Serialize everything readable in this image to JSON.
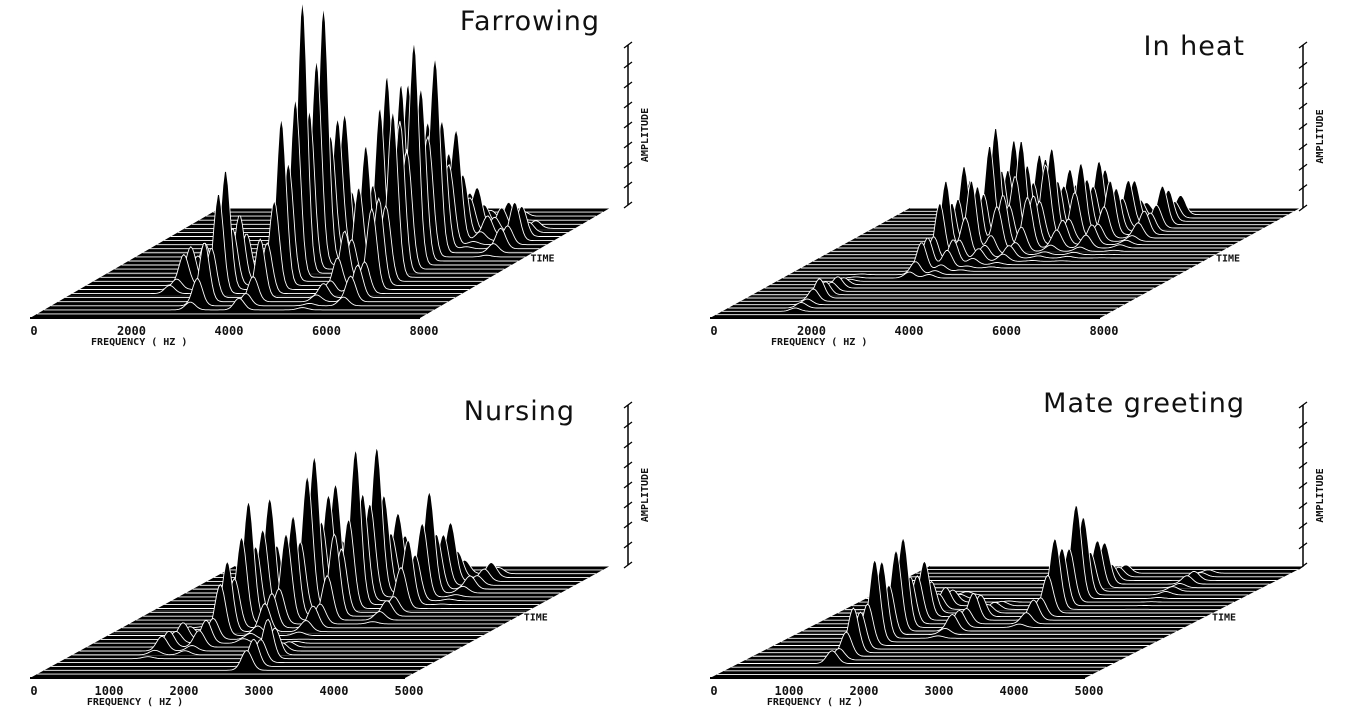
{
  "chart_data": [
    {
      "type": "3d-waterfall",
      "title": "Farrowing",
      "xlabel": "FREQUENCY ( HZ )",
      "zlabel": "AMPLITUDE",
      "ylabel": "TIME",
      "xlim": [
        0,
        8000
      ],
      "xticks": [
        "0",
        "2000",
        "4000",
        "6000",
        "8000"
      ],
      "amplitude_ticks": 8,
      "traces": 28,
      "peaks": [
        {
          "freq": 4000,
          "amp": 1.0,
          "t0": 0.05,
          "t1": 0.75,
          "t_peak": 0.45
        },
        {
          "freq": 5300,
          "amp": 0.72,
          "t0": 0.05,
          "t1": 0.8,
          "t_peak": 0.55
        },
        {
          "freq": 5700,
          "amp": 0.55,
          "t0": 0.2,
          "t1": 0.9,
          "t_peak": 0.6
        },
        {
          "freq": 6000,
          "amp": 0.8,
          "t0": 0.1,
          "t1": 0.9,
          "t_peak": 0.5
        },
        {
          "freq": 3000,
          "amp": 0.45,
          "t0": 0.05,
          "t1": 0.45,
          "t_peak": 0.25
        },
        {
          "freq": 2000,
          "amp": 0.15,
          "t0": 0.2,
          "t1": 0.55,
          "t_peak": 0.35
        },
        {
          "freq": 7200,
          "amp": 0.15,
          "t0": 0.55,
          "t1": 0.85,
          "t_peak": 0.7
        },
        {
          "freq": 6500,
          "amp": 0.1,
          "t0": 0.6,
          "t1": 0.95,
          "t_peak": 0.8
        }
      ]
    },
    {
      "type": "3d-waterfall",
      "title": "In heat",
      "xlabel": "FREQUENCY ( HZ )",
      "zlabel": "AMPLITUDE",
      "ylabel": "TIME",
      "xlim": [
        0,
        8000
      ],
      "xticks": [
        "0",
        "2000",
        "4000",
        "6000",
        "8000"
      ],
      "amplitude_ticks": 8,
      "traces": 34,
      "peaks": [
        {
          "freq": 2600,
          "amp": 0.45,
          "t0": 0.35,
          "t1": 0.9,
          "t_peak": 0.6
        },
        {
          "freq": 3000,
          "amp": 0.6,
          "t0": 0.35,
          "t1": 0.95,
          "t_peak": 0.7
        },
        {
          "freq": 3400,
          "amp": 0.5,
          "t0": 0.4,
          "t1": 0.95,
          "t_peak": 0.75
        },
        {
          "freq": 3900,
          "amp": 0.45,
          "t0": 0.45,
          "t1": 0.95,
          "t_peak": 0.75
        },
        {
          "freq": 4500,
          "amp": 0.4,
          "t0": 0.5,
          "t1": 0.95,
          "t_peak": 0.8
        },
        {
          "freq": 5100,
          "amp": 0.3,
          "t0": 0.5,
          "t1": 0.95,
          "t_peak": 0.8
        },
        {
          "freq": 5800,
          "amp": 0.2,
          "t0": 0.5,
          "t1": 0.95,
          "t_peak": 0.85
        },
        {
          "freq": 1500,
          "amp": 0.1,
          "t0": 0.05,
          "t1": 0.4,
          "t_peak": 0.2
        }
      ]
    },
    {
      "type": "3d-waterfall",
      "title": "Nursing",
      "xlabel": "FREQUENCY ( HZ )",
      "zlabel": "AMPLITUDE",
      "ylabel": "TIME",
      "xlim": [
        0,
        5000
      ],
      "xticks": [
        "0",
        "1000",
        "2000",
        "3000",
        "4000",
        "5000"
      ],
      "amplitude_ticks": 8,
      "traces": 30,
      "peaks": [
        {
          "freq": 1500,
          "amp": 0.55,
          "t0": 0.2,
          "t1": 0.85,
          "t_peak": 0.55
        },
        {
          "freq": 2000,
          "amp": 0.7,
          "t0": 0.3,
          "t1": 0.9,
          "t_peak": 0.65
        },
        {
          "freq": 2550,
          "amp": 0.72,
          "t0": 0.35,
          "t1": 0.95,
          "t_peak": 0.7
        },
        {
          "freq": 3250,
          "amp": 0.45,
          "t0": 0.45,
          "t1": 0.95,
          "t_peak": 0.75
        },
        {
          "freq": 2700,
          "amp": 0.2,
          "t0": 0.05,
          "t1": 0.35,
          "t_peak": 0.15
        },
        {
          "freq": 1100,
          "amp": 0.1,
          "t0": 0.15,
          "t1": 0.45,
          "t_peak": 0.3
        },
        {
          "freq": 3700,
          "amp": 0.08,
          "t0": 0.6,
          "t1": 0.95,
          "t_peak": 0.85
        }
      ]
    },
    {
      "type": "3d-waterfall",
      "title": "Mate greeting",
      "xlabel": "FREQUENCY ( HZ )",
      "zlabel": "AMPLITUDE",
      "ylabel": "TIME",
      "xlim": [
        0,
        5000
      ],
      "xticks": [
        "0",
        "1000",
        "2000",
        "3000",
        "4000",
        "5000"
      ],
      "amplitude_ticks": 8,
      "traces": 32,
      "peaks": [
        {
          "freq": 1250,
          "amp": 0.5,
          "t0": 0.1,
          "t1": 0.75,
          "t_peak": 0.4
        },
        {
          "freq": 2800,
          "amp": 0.5,
          "t0": 0.45,
          "t1": 0.95,
          "t_peak": 0.7
        },
        {
          "freq": 2000,
          "amp": 0.15,
          "t0": 0.35,
          "t1": 0.7,
          "t_peak": 0.5
        },
        {
          "freq": 3900,
          "amp": 0.05,
          "t0": 0.6,
          "t1": 0.95,
          "t_peak": 0.85
        }
      ]
    }
  ]
}
